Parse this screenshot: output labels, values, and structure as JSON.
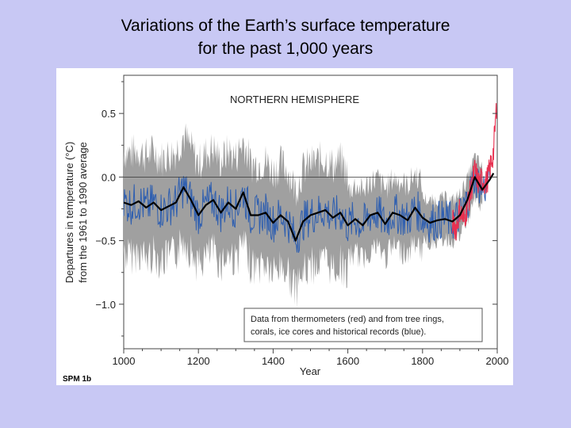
{
  "slide": {
    "title_line1": "Variations of the Earth’s surface temperature",
    "title_line2": "for the past 1,000 years"
  },
  "figure_label": "SPM 1b",
  "chart_data": {
    "type": "line",
    "panel_title": "NORTHERN HEMISPHERE",
    "xlabel": "Year",
    "ylabel_line1": "Departures in temperature (°C)",
    "ylabel_line2": "from the 1961 to 1990 average",
    "xlim": [
      1000,
      2000
    ],
    "ylim": [
      -1.35,
      0.8
    ],
    "x_ticks": [
      "1000",
      "1200",
      "1400",
      "1600",
      "1800",
      "2000"
    ],
    "y_ticks": [
      "0.5",
      "0.0",
      "−0.5",
      "−1.0"
    ],
    "legend_line1": "Data from thermometers (red) and from tree rings,",
    "legend_line2": "corals, ice cores and historical records (blue).",
    "colors": {
      "uncertainty": "#a0a0a0",
      "proxy": "#2f5fb0",
      "thermometer": "#e83050",
      "smoothed": "#000000"
    },
    "series": [
      {
        "name": "smoothed reconstruction",
        "x": [
          1000,
          1020,
          1040,
          1060,
          1080,
          1100,
          1120,
          1140,
          1160,
          1180,
          1200,
          1220,
          1240,
          1260,
          1280,
          1300,
          1320,
          1340,
          1360,
          1380,
          1400,
          1420,
          1440,
          1460,
          1480,
          1500,
          1520,
          1540,
          1560,
          1580,
          1600,
          1620,
          1640,
          1660,
          1680,
          1700,
          1720,
          1740,
          1760,
          1780,
          1800,
          1820,
          1840,
          1860,
          1880,
          1900,
          1920,
          1940,
          1960,
          1980,
          1990
        ],
        "y": [
          -0.2,
          -0.22,
          -0.19,
          -0.24,
          -0.2,
          -0.26,
          -0.23,
          -0.2,
          -0.08,
          -0.18,
          -0.3,
          -0.22,
          -0.18,
          -0.28,
          -0.2,
          -0.25,
          -0.12,
          -0.3,
          -0.3,
          -0.28,
          -0.36,
          -0.3,
          -0.35,
          -0.5,
          -0.35,
          -0.3,
          -0.28,
          -0.26,
          -0.32,
          -0.28,
          -0.38,
          -0.33,
          -0.38,
          -0.3,
          -0.28,
          -0.37,
          -0.28,
          -0.3,
          -0.34,
          -0.24,
          -0.32,
          -0.36,
          -0.34,
          -0.33,
          -0.35,
          -0.3,
          -0.18,
          0.0,
          -0.1,
          -0.02,
          0.03
        ]
      },
      {
        "name": "instrumental record",
        "x": [
          1880,
          1890,
          1900,
          1910,
          1920,
          1930,
          1940,
          1950,
          1960,
          1970,
          1980,
          1990,
          1998
        ],
        "y": [
          -0.35,
          -0.4,
          -0.25,
          -0.35,
          -0.22,
          -0.1,
          0.05,
          -0.05,
          -0.02,
          -0.05,
          0.05,
          0.2,
          0.55
        ]
      }
    ]
  }
}
